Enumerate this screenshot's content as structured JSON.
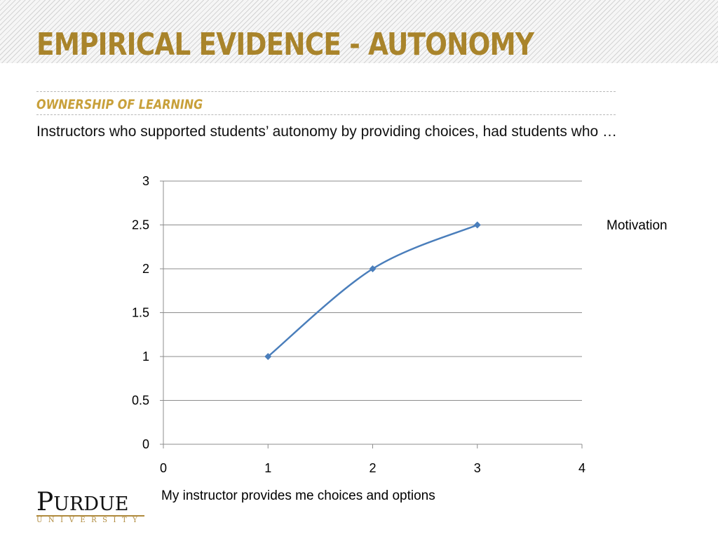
{
  "slide": {
    "title": "EMPIRICAL EVIDENCE - AUTONOMY",
    "subtitle": "OWNERSHIP OF LEARNING",
    "body": "Instructors who supported students’ autonomy by providing choices, had students who …",
    "title_color": "#a9842b",
    "subtitle_color": "#c8a03a"
  },
  "logo": {
    "wordmark": "PURDUE",
    "sub": "UNIVERSITY",
    "accent_color": "#b08b3e"
  },
  "chart_data": {
    "type": "line",
    "series": [
      {
        "name": "Motivation",
        "x": [
          1,
          2,
          3
        ],
        "y": [
          1,
          2,
          2.5
        ],
        "color": "#4a7ebb",
        "marker": "diamond",
        "smooth": true
      }
    ],
    "xlabel": "My instructor provides me choices and options",
    "ylabel": "",
    "xlim": [
      0,
      4
    ],
    "ylim": [
      0,
      3
    ],
    "xticks": [
      "0",
      "1",
      "2",
      "3",
      "4"
    ],
    "yticks": [
      "0",
      "0.5",
      "1",
      "1.5",
      "2",
      "2.5",
      "3"
    ],
    "grid": true,
    "legend_position": "right"
  }
}
